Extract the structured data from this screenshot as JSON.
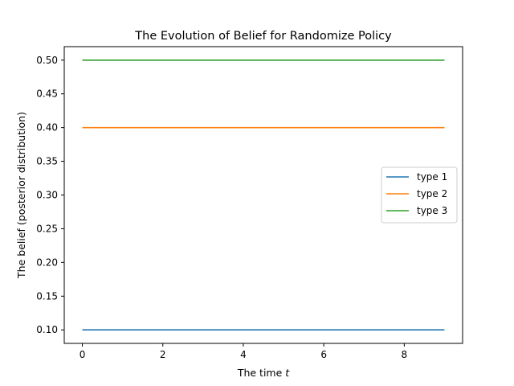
{
  "chart_data": {
    "type": "line",
    "title": "The Evolution of Belief for Randomize Policy",
    "xlabel": "The time ",
    "xlabel_var": "t",
    "ylabel": "The belief (posterior distribution)",
    "x": [
      0,
      1,
      2,
      3,
      4,
      5,
      6,
      7,
      8,
      9
    ],
    "xlim": [
      -0.45,
      9.45
    ],
    "ylim": [
      0.08,
      0.52
    ],
    "xticks": [
      0,
      2,
      4,
      6,
      8
    ],
    "xtick_labels": [
      "0",
      "2",
      "4",
      "6",
      "8"
    ],
    "yticks": [
      0.1,
      0.15,
      0.2,
      0.25,
      0.3,
      0.35,
      0.4,
      0.45,
      0.5
    ],
    "ytick_labels": [
      "0.10",
      "0.15",
      "0.20",
      "0.25",
      "0.30",
      "0.35",
      "0.40",
      "0.45",
      "0.50"
    ],
    "grid": false,
    "legend_position": "center-right",
    "series": [
      {
        "name": "type 1",
        "color": "#1f77b4",
        "values": [
          0.1,
          0.1,
          0.1,
          0.1,
          0.1,
          0.1,
          0.1,
          0.1,
          0.1,
          0.1
        ]
      },
      {
        "name": "type 2",
        "color": "#ff7f0e",
        "values": [
          0.4,
          0.4,
          0.4,
          0.4,
          0.4,
          0.4,
          0.4,
          0.4,
          0.4,
          0.4
        ]
      },
      {
        "name": "type 3",
        "color": "#2ca02c",
        "values": [
          0.5,
          0.5,
          0.5,
          0.5,
          0.5,
          0.5,
          0.5,
          0.5,
          0.5,
          0.5
        ]
      }
    ]
  }
}
